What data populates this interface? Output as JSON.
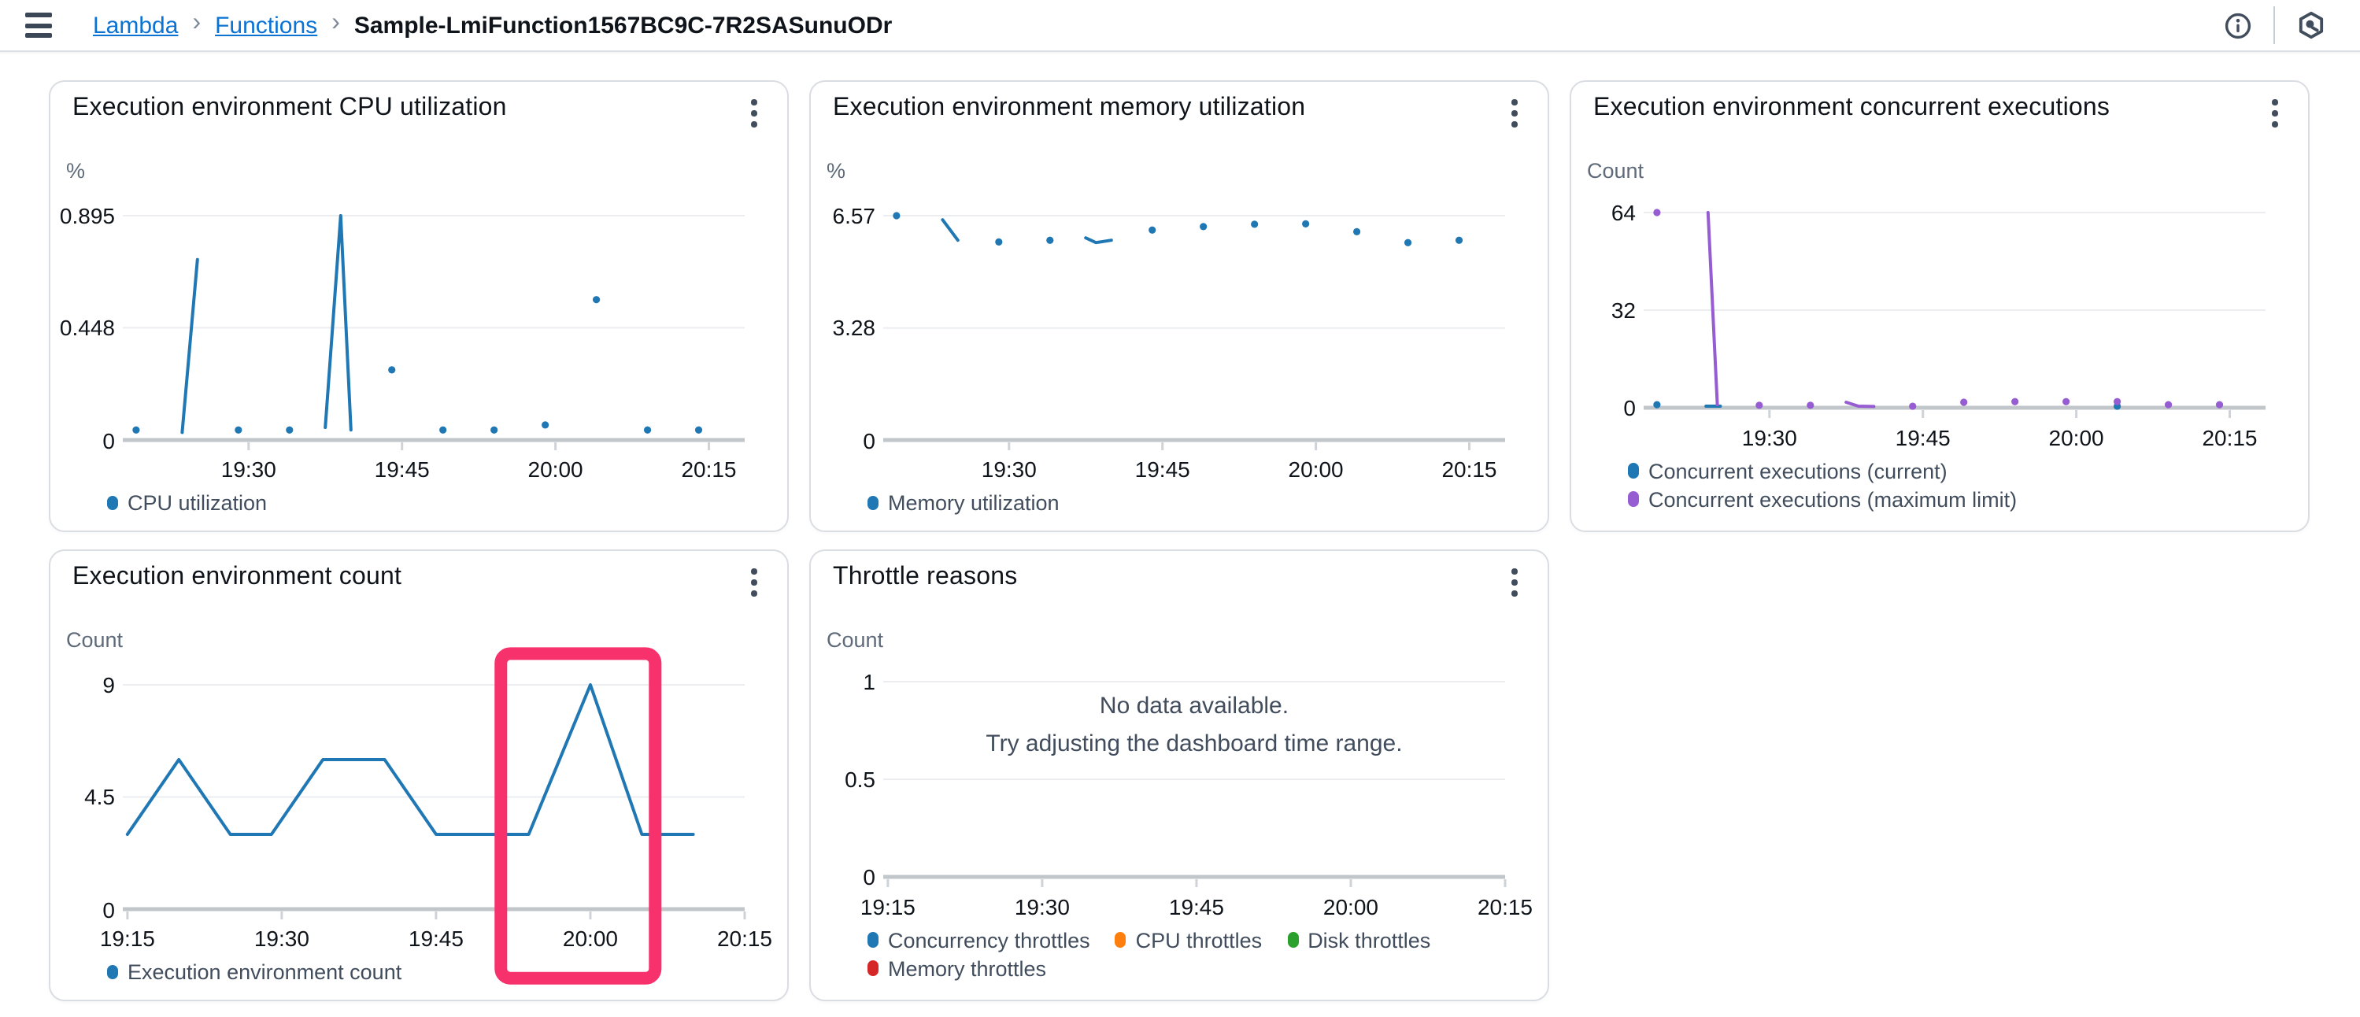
{
  "header": {
    "breadcrumb": {
      "separator": "›",
      "links": [
        {
          "label": "Lambda"
        },
        {
          "label": "Functions"
        }
      ],
      "current": "Sample-LmiFunction1567BC9C-7R2SASunuODr"
    },
    "icons": {
      "menu": "hamburger-menu",
      "info": "info-circle",
      "assistant": "amazon-q-hexagon"
    }
  },
  "colors": {
    "link_blue": "#0972d3",
    "text_dark": "#0f141a",
    "text_secondary": "#414d5c",
    "grid_line": "#ebedf0",
    "axis_line": "#c1c6cb",
    "tick_stub": "#cfd3d7",
    "card_border": "#dadde2",
    "annotation_pink": "#f7316b",
    "palette": {
      "blue": "#1f77b4",
      "purple": "#965cd2",
      "orange": "#ff7f0e",
      "green": "#2ca02c",
      "red": "#d62728"
    }
  },
  "chart_data": [
    {
      "id": "cpu-utilization",
      "title": "Execution environment CPU utilization",
      "type": "line",
      "unit": "%",
      "ylim": [
        0,
        0.895
      ],
      "yticks": [
        {
          "v": 0,
          "label": "0"
        },
        {
          "v": 0.448,
          "label": "0.448"
        },
        {
          "v": 0.895,
          "label": "0.895"
        }
      ],
      "xticks": [
        {
          "t": 30,
          "label": "19:30"
        },
        {
          "t": 45,
          "label": "19:45"
        },
        {
          "t": 60,
          "label": "20:00"
        },
        {
          "t": 75,
          "label": "20:15"
        }
      ],
      "t_range": [
        17.7,
        78.5
      ],
      "layout": "standard",
      "grid": true,
      "legend_position": "bottom",
      "series": [
        {
          "name": "CPU utilization",
          "color": "#1f77b4",
          "segments": [
            [
              [
                19,
                0.04
              ]
            ],
            [
              [
                23.5,
                0.03
              ],
              [
                25,
                0.72
              ]
            ],
            [
              [
                29,
                0.04
              ]
            ],
            [
              [
                34,
                0.04
              ]
            ],
            [
              [
                37.5,
                0.05
              ],
              [
                39,
                0.895
              ],
              [
                40,
                0.04
              ]
            ],
            [
              [
                44,
                0.28
              ]
            ],
            [
              [
                49,
                0.04
              ]
            ],
            [
              [
                54,
                0.04
              ]
            ],
            [
              [
                59,
                0.06
              ]
            ],
            [
              [
                64,
                0.56
              ]
            ],
            [
              [
                69,
                0.04
              ]
            ],
            [
              [
                74,
                0.04
              ]
            ]
          ]
        }
      ]
    },
    {
      "id": "memory-utilization",
      "title": "Execution environment memory utilization",
      "type": "line",
      "unit": "%",
      "ylim": [
        0,
        6.57
      ],
      "yticks": [
        {
          "v": 0,
          "label": "0"
        },
        {
          "v": 3.28,
          "label": "3.28"
        },
        {
          "v": 6.57,
          "label": "6.57"
        }
      ],
      "xticks": [
        {
          "t": 30,
          "label": "19:30"
        },
        {
          "t": 45,
          "label": "19:45"
        },
        {
          "t": 60,
          "label": "20:00"
        },
        {
          "t": 75,
          "label": "20:15"
        }
      ],
      "t_range": [
        17.7,
        78.5
      ],
      "layout": "standard",
      "grid": true,
      "legend_position": "bottom",
      "series": [
        {
          "name": "Memory utilization",
          "color": "#1f77b4",
          "segments": [
            [
              [
                19,
                6.57
              ]
            ],
            [
              [
                23.5,
                6.45
              ],
              [
                25,
                5.85
              ]
            ],
            [
              [
                29,
                5.8
              ]
            ],
            [
              [
                34,
                5.85
              ]
            ],
            [
              [
                37.5,
                5.92
              ],
              [
                38.5,
                5.78
              ],
              [
                40,
                5.85
              ]
            ],
            [
              [
                44,
                6.15
              ]
            ],
            [
              [
                49,
                6.25
              ]
            ],
            [
              [
                54,
                6.32
              ]
            ],
            [
              [
                59,
                6.33
              ]
            ],
            [
              [
                64,
                6.1
              ]
            ],
            [
              [
                69,
                5.78
              ]
            ],
            [
              [
                74,
                5.85
              ]
            ]
          ]
        }
      ]
    },
    {
      "id": "concurrent-executions",
      "title": "Execution environment concurrent executions",
      "type": "line",
      "unit": "Count",
      "ylim": [
        0,
        64
      ],
      "yticks": [
        {
          "v": 0,
          "label": "0"
        },
        {
          "v": 32,
          "label": "32"
        },
        {
          "v": 64,
          "label": "64"
        }
      ],
      "xticks": [
        {
          "t": 30,
          "label": "19:30"
        },
        {
          "t": 45,
          "label": "19:45"
        },
        {
          "t": 60,
          "label": "20:00"
        },
        {
          "t": 75,
          "label": "20:15"
        }
      ],
      "t_range": [
        17.7,
        78.5
      ],
      "layout": "tall-legend",
      "grid": true,
      "legend_position": "bottom",
      "series": [
        {
          "name": "Concurrent executions (current)",
          "color": "#1f77b4",
          "segments": [
            [
              [
                19,
                1
              ]
            ],
            [
              [
                23.8,
                0.5
              ],
              [
                25.2,
                0.5
              ]
            ],
            [
              [
                64,
                0.5
              ]
            ]
          ]
        },
        {
          "name": "Concurrent executions (maximum limit)",
          "color": "#965cd2",
          "segments": [
            [
              [
                19,
                64
              ]
            ],
            [
              [
                24,
                64
              ],
              [
                24.9,
                1
              ]
            ],
            [
              [
                29,
                0.8
              ]
            ],
            [
              [
                34,
                0.8
              ]
            ],
            [
              [
                37.5,
                1.8
              ],
              [
                38.7,
                0.5
              ],
              [
                40.2,
                0.4
              ]
            ],
            [
              [
                44,
                0.5
              ]
            ],
            [
              [
                49,
                1.8
              ]
            ],
            [
              [
                54,
                2
              ]
            ],
            [
              [
                59,
                2
              ]
            ],
            [
              [
                64,
                2
              ]
            ],
            [
              [
                69,
                1
              ]
            ],
            [
              [
                74,
                1
              ]
            ]
          ]
        }
      ]
    },
    {
      "id": "execution-environment-count",
      "title": "Execution environment count",
      "type": "line",
      "unit": "Count",
      "ylim": [
        0,
        9
      ],
      "yticks": [
        {
          "v": 0,
          "label": "0"
        },
        {
          "v": 4.5,
          "label": "4.5"
        },
        {
          "v": 9,
          "label": "9"
        }
      ],
      "xticks": [
        {
          "t": 15,
          "label": "19:15"
        },
        {
          "t": 30,
          "label": "19:30"
        },
        {
          "t": 45,
          "label": "19:45"
        },
        {
          "t": 60,
          "label": "20:00"
        },
        {
          "t": 75,
          "label": "20:15"
        }
      ],
      "t_range": [
        14.55,
        75
      ],
      "layout": "standard",
      "grid": true,
      "legend_position": "bottom",
      "series": [
        {
          "name": "Execution environment count",
          "color": "#1f77b4",
          "segments": [
            [
              [
                15,
                3
              ],
              [
                20,
                6
              ],
              [
                25,
                3
              ],
              [
                29,
                3
              ],
              [
                34,
                6
              ],
              [
                40,
                6
              ],
              [
                45,
                3
              ],
              [
                54,
                3
              ],
              [
                60,
                9
              ],
              [
                65,
                3
              ],
              [
                70,
                3
              ]
            ]
          ]
        }
      ],
      "annotation": {
        "type": "rect",
        "t": [
          51.3,
          66.3
        ],
        "v": [
          -2.77,
          10.25
        ],
        "color": "#f7316b",
        "stroke_width": 8,
        "radius": 6
      }
    },
    {
      "id": "throttle-reasons",
      "title": "Throttle reasons",
      "type": "line",
      "unit": "Count",
      "ylim": [
        0,
        1
      ],
      "yticks": [
        {
          "v": 0,
          "label": "0"
        },
        {
          "v": 0.5,
          "label": "0.5"
        },
        {
          "v": 1,
          "label": "1"
        }
      ],
      "xticks": [
        {
          "t": 15,
          "label": "19:15"
        },
        {
          "t": 30,
          "label": "19:30"
        },
        {
          "t": 45,
          "label": "19:45"
        },
        {
          "t": 60,
          "label": "20:00"
        },
        {
          "t": 75,
          "label": "20:15"
        }
      ],
      "t_range": [
        14.55,
        75
      ],
      "layout": "tall-legend",
      "grid": true,
      "legend_position": "bottom",
      "no_data": {
        "line1": "No data available.",
        "line2": "Try adjusting the dashboard time range."
      },
      "series": [
        {
          "name": "Concurrency throttles",
          "color": "#1f77b4",
          "segments": []
        },
        {
          "name": "CPU throttles",
          "color": "#ff7f0e",
          "segments": []
        },
        {
          "name": "Disk throttles",
          "color": "#2ca02c",
          "segments": []
        },
        {
          "name": "Memory throttles",
          "color": "#d62728",
          "segments": []
        }
      ]
    }
  ]
}
